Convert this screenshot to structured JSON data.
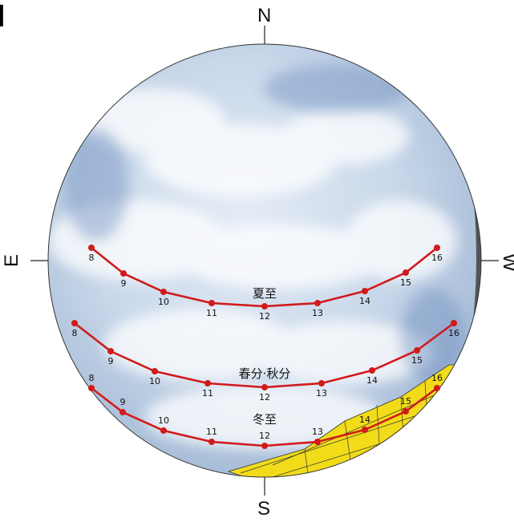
{
  "corner_mark": "】",
  "compass": {
    "north": "N",
    "south": "S",
    "east": "E",
    "west": "W"
  },
  "colors": {
    "sun_path": "#d11a1a",
    "obstruction": "#f2dc1a",
    "sky": "#c9d8ea"
  },
  "sun_paths": [
    {
      "label": "夏至",
      "hours": [
        "8",
        "9",
        "10",
        "11",
        "12",
        "13",
        "14",
        "15",
        "16"
      ]
    },
    {
      "label": "春分·秋分",
      "hours": [
        "8",
        "9",
        "10",
        "11",
        "12",
        "13",
        "14",
        "15",
        "16"
      ]
    },
    {
      "label": "冬至",
      "hours": [
        "8",
        "9",
        "10",
        "11",
        "12",
        "13",
        "14",
        "15",
        "16"
      ]
    }
  ]
}
